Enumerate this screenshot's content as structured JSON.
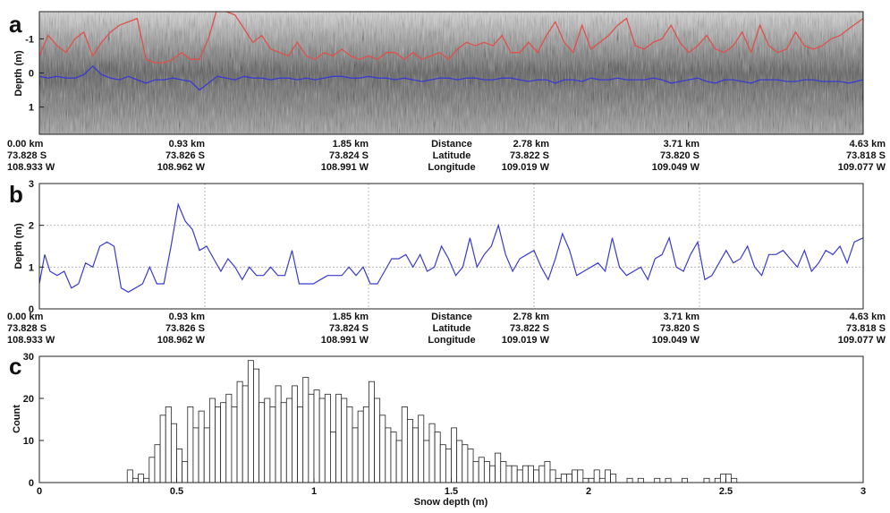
{
  "panels": {
    "a": "a",
    "b": "b",
    "c": "c"
  },
  "chart_data": [
    {
      "type": "heatmap",
      "panel": "a",
      "ylabel": "Depth (m)",
      "yticks": [
        "-1",
        "0",
        "1"
      ],
      "ylim": [
        1.8,
        -1.8
      ],
      "x_km": [
        0,
        0.05,
        0.1,
        0.15,
        0.2,
        0.25,
        0.3,
        0.35,
        0.4,
        0.45,
        0.5,
        0.55,
        0.6,
        0.65,
        0.7,
        0.75,
        0.8,
        0.85,
        0.9,
        0.95,
        1.0,
        1.05,
        1.1,
        1.15,
        1.2,
        1.25,
        1.3,
        1.35,
        1.4,
        1.45,
        1.5,
        1.55,
        1.6,
        1.65,
        1.7,
        1.75,
        1.8,
        1.85,
        1.9,
        1.95,
        2.0,
        2.05,
        2.1,
        2.15,
        2.2,
        2.25,
        2.3,
        2.35,
        2.4,
        2.45,
        2.5,
        2.55,
        2.6,
        2.65,
        2.7,
        2.75,
        2.8,
        2.85,
        2.9,
        2.95,
        3.0,
        3.05,
        3.1,
        3.15,
        3.2,
        3.25,
        3.3,
        3.35,
        3.4,
        3.45,
        3.5,
        3.55,
        3.6,
        3.65,
        3.7,
        3.75,
        3.8,
        3.85,
        3.9,
        3.95,
        4.0,
        4.05,
        4.1,
        4.15,
        4.2,
        4.25,
        4.3,
        4.35,
        4.4,
        4.45,
        4.5,
        4.55,
        4.63
      ],
      "series": [
        {
          "color": "#e0504a",
          "values": [
            -0.5,
            -1.1,
            -0.8,
            -0.6,
            -1.0,
            -1.2,
            -0.5,
            -0.9,
            -1.2,
            -1.4,
            -1.5,
            -1.6,
            -0.4,
            -0.3,
            -0.3,
            -0.4,
            -0.6,
            -0.4,
            -0.4,
            -1.0,
            -1.9,
            -1.8,
            -1.7,
            -1.3,
            -0.9,
            -1.1,
            -0.7,
            -0.6,
            -0.5,
            -0.9,
            -0.5,
            -0.4,
            -0.6,
            -0.5,
            -0.7,
            -0.5,
            -0.4,
            -0.5,
            -0.4,
            -0.6,
            -0.6,
            -0.4,
            -0.6,
            -0.4,
            -0.5,
            -0.6,
            -0.4,
            -0.7,
            -0.9,
            -0.8,
            -0.9,
            -0.8,
            -1.1,
            -0.6,
            -0.6,
            -0.9,
            -0.6,
            -1.1,
            -1.5,
            -0.9,
            -0.6,
            -1.4,
            -0.7,
            -0.9,
            -1.1,
            -1.4,
            -1.6,
            -0.8,
            -0.7,
            -0.9,
            -1.0,
            -1.4,
            -0.9,
            -0.6,
            -0.8,
            -1.1,
            -0.7,
            -0.6,
            -0.8,
            -1.2,
            -0.6,
            -1.4,
            -0.8,
            -0.6,
            -0.7,
            -1.2,
            -0.8,
            -0.7,
            -0.8,
            -1.0,
            -1.1,
            -1.3,
            -1.6
          ]
        },
        {
          "color": "#3a3acf",
          "values": [
            0.1,
            0.15,
            0.1,
            0.15,
            0.15,
            0.05,
            -0.2,
            0.05,
            0.15,
            0.2,
            0.1,
            0.2,
            0.3,
            0.2,
            0.2,
            0.15,
            0.2,
            0.25,
            0.5,
            0.3,
            0.1,
            0.15,
            0.2,
            0.1,
            0.15,
            0.15,
            0.2,
            0.15,
            0.15,
            0.2,
            0.15,
            0.2,
            0.15,
            0.1,
            0.1,
            0.15,
            0.15,
            0.1,
            0.15,
            0.15,
            0.2,
            0.15,
            0.2,
            0.25,
            0.2,
            0.15,
            0.15,
            0.2,
            0.15,
            0.15,
            0.2,
            0.2,
            0.15,
            0.15,
            0.2,
            0.25,
            0.2,
            0.2,
            0.3,
            0.2,
            0.2,
            0.25,
            0.15,
            0.2,
            0.2,
            0.15,
            0.2,
            0.2,
            0.2,
            0.15,
            0.2,
            0.3,
            0.25,
            0.2,
            0.15,
            0.25,
            0.3,
            0.2,
            0.2,
            0.25,
            0.3,
            0.2,
            0.2,
            0.2,
            0.25,
            0.25,
            0.2,
            0.2,
            0.25,
            0.25,
            0.25,
            0.3,
            0.2
          ]
        }
      ]
    },
    {
      "type": "line",
      "panel": "b",
      "ylabel": "Depth (m)",
      "yticks": [
        "0",
        "1",
        "2",
        "3"
      ],
      "ylim": [
        0,
        3
      ],
      "grid": true,
      "x_km": [
        0,
        0.03,
        0.06,
        0.1,
        0.14,
        0.18,
        0.22,
        0.26,
        0.3,
        0.34,
        0.38,
        0.42,
        0.46,
        0.5,
        0.54,
        0.58,
        0.62,
        0.66,
        0.7,
        0.74,
        0.78,
        0.82,
        0.86,
        0.9,
        0.94,
        0.98,
        1.02,
        1.06,
        1.1,
        1.14,
        1.18,
        1.22,
        1.26,
        1.3,
        1.34,
        1.38,
        1.42,
        1.46,
        1.5,
        1.54,
        1.58,
        1.62,
        1.66,
        1.7,
        1.74,
        1.78,
        1.82,
        1.86,
        1.9,
        1.94,
        1.98,
        2.02,
        2.06,
        2.1,
        2.14,
        2.18,
        2.22,
        2.26,
        2.3,
        2.34,
        2.38,
        2.42,
        2.46,
        2.5,
        2.54,
        2.58,
        2.62,
        2.66,
        2.7,
        2.74,
        2.78,
        2.82,
        2.86,
        2.9,
        2.94,
        2.98,
        3.02,
        3.06,
        3.1,
        3.14,
        3.18,
        3.22,
        3.26,
        3.3,
        3.34,
        3.38,
        3.42,
        3.46,
        3.5,
        3.54,
        3.58,
        3.62,
        3.66,
        3.7,
        3.74,
        3.78,
        3.82,
        3.86,
        3.9,
        3.94,
        3.98,
        4.02,
        4.06,
        4.1,
        4.14,
        4.18,
        4.22,
        4.26,
        4.3,
        4.34,
        4.38,
        4.42,
        4.46,
        4.5,
        4.54,
        4.58,
        4.63
      ],
      "series": [
        {
          "color": "#3a3acf",
          "values": [
            0.6,
            1.3,
            0.9,
            0.8,
            0.9,
            0.5,
            0.6,
            1.1,
            1.0,
            1.5,
            1.6,
            1.5,
            0.5,
            0.4,
            0.5,
            0.6,
            1.0,
            0.6,
            0.6,
            1.5,
            2.5,
            2.1,
            1.9,
            1.4,
            1.5,
            1.2,
            0.9,
            1.2,
            1.0,
            0.7,
            1.0,
            0.8,
            0.8,
            1.0,
            0.8,
            0.8,
            1.4,
            0.6,
            0.6,
            0.6,
            0.7,
            0.8,
            0.8,
            0.8,
            1.0,
            0.8,
            1.0,
            0.6,
            0.6,
            0.9,
            1.2,
            1.2,
            1.3,
            1.0,
            1.3,
            0.9,
            1.0,
            1.5,
            1.2,
            0.8,
            1.0,
            1.7,
            1.0,
            1.3,
            1.5,
            2.0,
            1.3,
            0.9,
            1.2,
            1.3,
            1.4,
            1.0,
            0.7,
            1.2,
            1.8,
            1.4,
            0.8,
            0.9,
            1.0,
            1.1,
            0.9,
            1.7,
            1.0,
            0.8,
            0.9,
            1.0,
            0.7,
            1.2,
            1.3,
            1.7,
            1.0,
            0.9,
            1.3,
            1.6,
            0.7,
            0.8,
            1.1,
            1.4,
            1.1,
            1.2,
            1.5,
            1.0,
            0.8,
            1.3,
            1.3,
            1.4,
            1.2,
            1.0,
            1.4,
            0.9,
            1.1,
            1.4,
            1.3,
            1.5,
            1.1,
            1.6,
            1.7
          ]
        }
      ]
    },
    {
      "type": "bar",
      "panel": "c",
      "xlabel": "Snow depth (m)",
      "ylabel": "Count",
      "xticks": [
        "0",
        "0.5",
        "1",
        "1.5",
        "2",
        "2.5",
        "3"
      ],
      "yticks": [
        "0",
        "10",
        "20",
        "30"
      ],
      "xlim": [
        0,
        3
      ],
      "ylim": [
        0,
        30
      ],
      "bin_width": 0.02,
      "bin_start": [
        0.32,
        0.34,
        0.36,
        0.38,
        0.4,
        0.42,
        0.44,
        0.46,
        0.48,
        0.5,
        0.52,
        0.54,
        0.56,
        0.58,
        0.6,
        0.62,
        0.64,
        0.66,
        0.68,
        0.7,
        0.72,
        0.74,
        0.76,
        0.78,
        0.8,
        0.82,
        0.84,
        0.86,
        0.88,
        0.9,
        0.92,
        0.94,
        0.96,
        0.98,
        1.0,
        1.02,
        1.04,
        1.06,
        1.08,
        1.1,
        1.12,
        1.14,
        1.16,
        1.18,
        1.2,
        1.22,
        1.24,
        1.26,
        1.28,
        1.3,
        1.32,
        1.34,
        1.36,
        1.38,
        1.4,
        1.42,
        1.44,
        1.46,
        1.48,
        1.5,
        1.52,
        1.54,
        1.56,
        1.58,
        1.6,
        1.62,
        1.64,
        1.66,
        1.68,
        1.7,
        1.72,
        1.74,
        1.76,
        1.78,
        1.8,
        1.82,
        1.84,
        1.86,
        1.88,
        1.9,
        1.92,
        1.94,
        1.96,
        1.98,
        2.0,
        2.02,
        2.04,
        2.06,
        2.08,
        2.14,
        2.18,
        2.24,
        2.28,
        2.34,
        2.42,
        2.46,
        2.48,
        2.5,
        2.52
      ],
      "counts": [
        3,
        1,
        2,
        1,
        6,
        9,
        16,
        18,
        14,
        8,
        5,
        18,
        13,
        17,
        13,
        20,
        18,
        19,
        21,
        18,
        24,
        23,
        29,
        27,
        19,
        20,
        18,
        23,
        19,
        20,
        23,
        18,
        25,
        21,
        22,
        20,
        21,
        12,
        21,
        20,
        18,
        13,
        17,
        18,
        24,
        20,
        16,
        13,
        12,
        10,
        18,
        15,
        13,
        16,
        10,
        14,
        12,
        9,
        8,
        13,
        10,
        9,
        8,
        5,
        6,
        5,
        4,
        7,
        5,
        4,
        4,
        3,
        4,
        4,
        3,
        4,
        5,
        3,
        1,
        2,
        2,
        3,
        3,
        1,
        1,
        3,
        1,
        3,
        2,
        1,
        1,
        1,
        1,
        1,
        1,
        1,
        2,
        2,
        1
      ]
    }
  ],
  "distance_axis": {
    "columns": [
      {
        "km": "0.00 km",
        "lat": "73.828 S",
        "lon": "108.933 W"
      },
      {
        "km": "0.93 km",
        "lat": "73.826 S",
        "lon": "108.962 W"
      },
      {
        "km": "1.85 km",
        "lat": "73.824 S",
        "lon": "108.991 W"
      },
      {
        "km": "2.78 km",
        "lat": "73.822 S",
        "lon": "109.019 W"
      },
      {
        "km": "3.71 km",
        "lat": "73.820 S",
        "lon": "109.049 W"
      },
      {
        "km": "4.63 km",
        "lat": "73.818 S",
        "lon": "109.077 W"
      }
    ],
    "row_labels": [
      "Distance",
      "Latitude",
      "Longitude"
    ]
  }
}
